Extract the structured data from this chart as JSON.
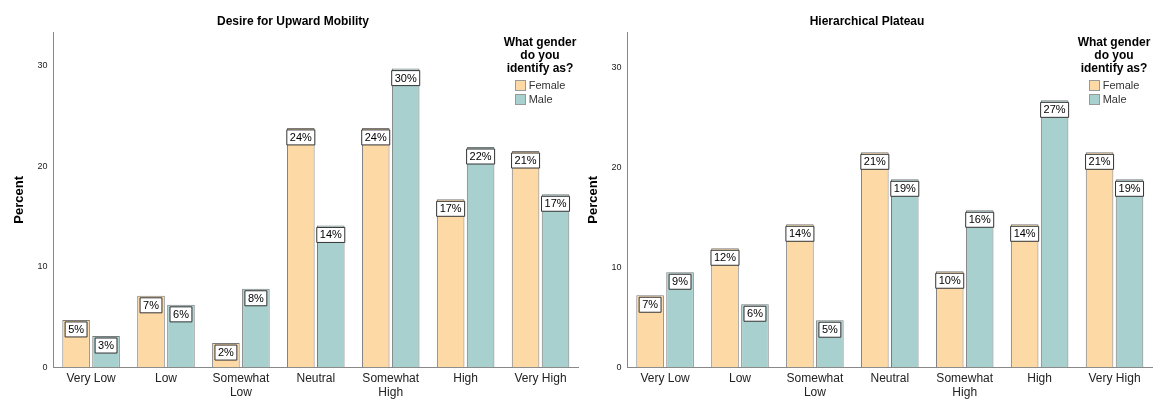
{
  "chart_data": [
    {
      "type": "bar",
      "title": "Desire for Upward Mobility",
      "ylabel": "Percent",
      "legend_title": "What gender do you identify as?",
      "legend": "top right",
      "grid": false,
      "categories": [
        "Very Low",
        "Low",
        "Somewhat Low",
        "Neutral",
        "Somewhat High",
        "High",
        "Very High"
      ],
      "ylim": [
        0,
        33.3
      ],
      "yticks": [
        0,
        10,
        20,
        30
      ],
      "series": [
        {
          "name": "Female",
          "color": "#fdd9a5",
          "values": [
            4.7,
            7.1,
            2.4,
            23.8,
            23.8,
            16.7,
            21.5
          ],
          "value_labels": [
            "5%",
            "7%",
            "2%",
            "24%",
            "24%",
            "17%",
            "21%"
          ]
        },
        {
          "name": "Male",
          "color": "#a8d0cf",
          "values": [
            3.1,
            6.2,
            7.8,
            14.1,
            29.7,
            21.9,
            17.2
          ],
          "value_labels": [
            "3%",
            "6%",
            "8%",
            "14%",
            "30%",
            "22%",
            "17%"
          ]
        }
      ]
    },
    {
      "type": "bar",
      "title": "Hierarchical Plateau",
      "ylabel": "Percent",
      "legend_title": "What gender do you identify as?",
      "legend": "top right",
      "grid": false,
      "categories": [
        "Very Low",
        "Low",
        "Somewhat Low",
        "Neutral",
        "Somewhat High",
        "High",
        "Very High"
      ],
      "ylim": [
        0,
        33.5
      ],
      "yticks": [
        0,
        10,
        20,
        30
      ],
      "series": [
        {
          "name": "Female",
          "color": "#fdd9a5",
          "values": [
            7.2,
            11.9,
            14.3,
            21.5,
            9.6,
            14.3,
            21.5
          ],
          "value_labels": [
            "7%",
            "12%",
            "14%",
            "21%",
            "10%",
            "14%",
            "21%"
          ]
        },
        {
          "name": "Male",
          "color": "#a8d0cf",
          "values": [
            9.5,
            6.3,
            4.7,
            18.8,
            15.7,
            26.7,
            18.8
          ],
          "value_labels": [
            "9%",
            "6%",
            "5%",
            "19%",
            "16%",
            "27%",
            "19%"
          ]
        }
      ]
    }
  ]
}
